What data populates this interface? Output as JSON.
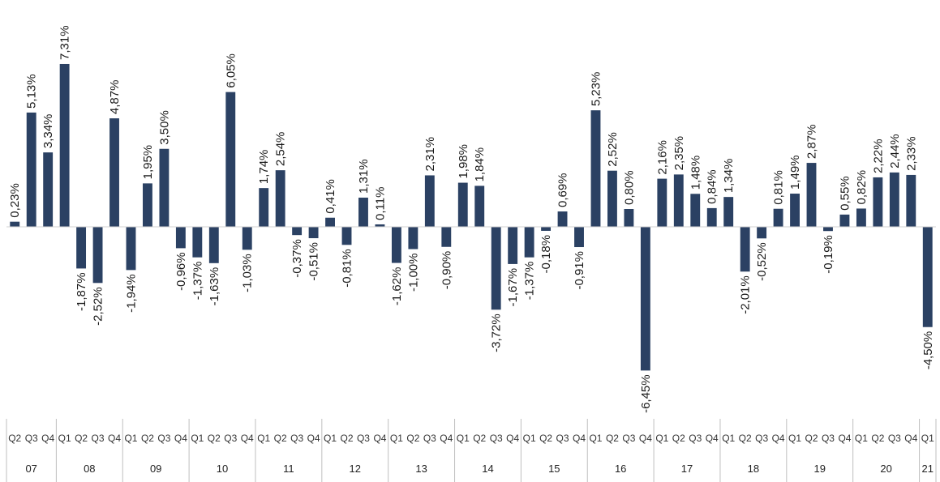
{
  "chart_data": {
    "type": "bar",
    "title": "",
    "xlabel": "",
    "ylabel": "",
    "bar_color": "#2b4163",
    "axis_color": "#bfbfbf",
    "categories": [
      "Q2",
      "Q3",
      "Q4",
      "Q1",
      "Q2",
      "Q3",
      "Q4",
      "Q1",
      "Q2",
      "Q3",
      "Q4",
      "Q1",
      "Q2",
      "Q3",
      "Q4",
      "Q1",
      "Q2",
      "Q3",
      "Q4",
      "Q1",
      "Q2",
      "Q3",
      "Q4",
      "Q1",
      "Q2",
      "Q3",
      "Q4",
      "Q1",
      "Q2",
      "Q3",
      "Q4",
      "Q1",
      "Q2",
      "Q3",
      "Q4",
      "Q1",
      "Q2",
      "Q3",
      "Q4",
      "Q1",
      "Q2",
      "Q3",
      "Q4",
      "Q1",
      "Q2",
      "Q3",
      "Q4",
      "Q1",
      "Q2",
      "Q3",
      "Q4",
      "Q1",
      "Q2",
      "Q3",
      "Q4",
      "Q1"
    ],
    "year_groups": [
      {
        "label": "07",
        "count": 3
      },
      {
        "label": "08",
        "count": 4
      },
      {
        "label": "09",
        "count": 4
      },
      {
        "label": "10",
        "count": 4
      },
      {
        "label": "11",
        "count": 4
      },
      {
        "label": "12",
        "count": 4
      },
      {
        "label": "13",
        "count": 4
      },
      {
        "label": "14",
        "count": 4
      },
      {
        "label": "15",
        "count": 4
      },
      {
        "label": "16",
        "count": 4
      },
      {
        "label": "17",
        "count": 4
      },
      {
        "label": "18",
        "count": 4
      },
      {
        "label": "19",
        "count": 4
      },
      {
        "label": "20",
        "count": 4
      },
      {
        "label": "21",
        "count": 1
      }
    ],
    "values": [
      0.23,
      5.13,
      3.34,
      7.31,
      -1.87,
      -2.52,
      4.87,
      -1.94,
      1.95,
      3.5,
      -0.96,
      -1.37,
      -1.63,
      6.05,
      -1.03,
      1.74,
      2.54,
      -0.37,
      -0.51,
      0.41,
      -0.81,
      1.31,
      0.11,
      -1.62,
      -1.0,
      2.31,
      -0.9,
      1.98,
      1.84,
      -3.72,
      -1.67,
      -1.37,
      -0.18,
      0.69,
      -0.91,
      5.23,
      2.52,
      0.8,
      -6.45,
      2.16,
      2.35,
      1.48,
      0.84,
      1.34,
      -2.01,
      -0.52,
      0.81,
      1.49,
      2.87,
      -0.19,
      0.55,
      0.82,
      2.22,
      2.44,
      2.33,
      -4.5
    ],
    "value_labels": [
      "0,23%",
      "5,13%",
      "3,34%",
      "7,31%",
      "-1,87%",
      "-2,52%",
      "4,87%",
      "-1,94%",
      "1,95%",
      "3,50%",
      "-0,96%",
      "-1,37%",
      "-1,63%",
      "6,05%",
      "-1,03%",
      "1,74%",
      "2,54%",
      "-0,37%",
      "-0,51%",
      "0,41%",
      "-0,81%",
      "1,31%",
      "0,11%",
      "-1,62%",
      "-1,00%",
      "2,31%",
      "-0,90%",
      "1,98%",
      "1,84%",
      "-3,72%",
      "-1,67%",
      "-1,37%",
      "-0,18%",
      "0,69%",
      "-0,91%",
      "5,23%",
      "2,52%",
      "0,80%",
      "-6,45%",
      "2,16%",
      "2,35%",
      "1,48%",
      "0,84%",
      "1,34%",
      "-2,01%",
      "-0,52%",
      "0,81%",
      "1,49%",
      "2,87%",
      "-0,19%",
      "0,55%",
      "0,82%",
      "2,22%",
      "2,44%",
      "2,33%",
      "-4,50%"
    ],
    "grid": false,
    "legend": "none"
  }
}
